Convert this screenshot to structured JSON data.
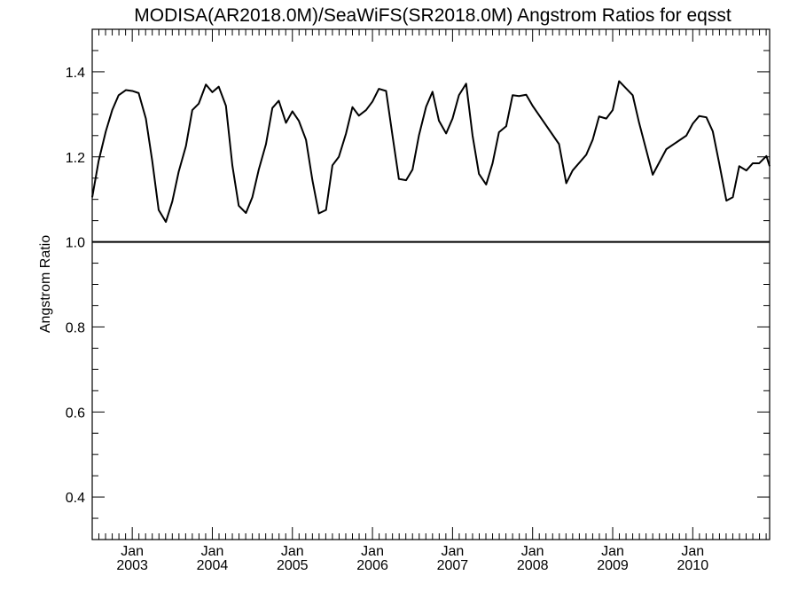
{
  "chart_data": {
    "type": "line",
    "title": "MODISA(AR2018.0M)/SeaWiFS(SR2018.0M)  Angstrom Ratios for eqsst",
    "xlabel": "",
    "ylabel": "Angstrom Ratio",
    "xlim": [
      2002.5,
      2010.96
    ],
    "ylim": [
      0.3,
      1.5
    ],
    "y_ticks": [
      "0.4",
      "0.6",
      "0.8",
      "1.0",
      "1.2",
      "1.4"
    ],
    "x_ticks": [
      {
        "month": "Jan",
        "year": "2003"
      },
      {
        "month": "Jan",
        "year": "2004"
      },
      {
        "month": "Jan",
        "year": "2005"
      },
      {
        "month": "Jan",
        "year": "2006"
      },
      {
        "month": "Jan",
        "year": "2007"
      },
      {
        "month": "Jan",
        "year": "2008"
      },
      {
        "month": "Jan",
        "year": "2009"
      },
      {
        "month": "Jan",
        "year": "2010"
      }
    ],
    "reference_line": 1.0,
    "series": [
      {
        "x": [
          2002.5,
          2002.58,
          2002.67,
          2002.75,
          2002.83,
          2002.92,
          2003.0,
          2003.08,
          2003.17,
          2003.25,
          2003.33,
          2003.42,
          2003.5,
          2003.58,
          2003.67,
          2003.75,
          2003.83,
          2003.92,
          2004.0,
          2004.08,
          2004.17,
          2004.25,
          2004.33,
          2004.42,
          2004.5,
          2004.58,
          2004.67,
          2004.75,
          2004.83,
          2004.92,
          2005.0,
          2005.08,
          2005.17,
          2005.25,
          2005.33,
          2005.42,
          2005.5,
          2005.58,
          2005.67,
          2005.75,
          2005.83,
          2005.92,
          2006.0,
          2006.08,
          2006.17,
          2006.25,
          2006.33,
          2006.42,
          2006.5,
          2006.58,
          2006.67,
          2006.75,
          2006.83,
          2006.92,
          2007.0,
          2007.08,
          2007.17,
          2007.25,
          2007.33,
          2007.42,
          2007.5,
          2007.58,
          2007.67,
          2007.75,
          2007.83,
          2007.92,
          2008.0,
          2008.33,
          2008.42,
          2008.5,
          2008.67,
          2008.75,
          2008.83,
          2008.92,
          2009.0,
          2009.08,
          2009.25,
          2009.33,
          2009.5,
          2009.67,
          2009.92,
          2010.0,
          2010.08,
          2010.17,
          2010.25,
          2010.33,
          2010.42,
          2010.5,
          2010.58,
          2010.67,
          2010.75,
          2010.83,
          2010.92,
          2010.96
        ],
        "y": [
          1.105,
          1.19,
          1.26,
          1.31,
          1.345,
          1.357,
          1.355,
          1.35,
          1.29,
          1.19,
          1.075,
          1.047,
          1.095,
          1.165,
          1.225,
          1.31,
          1.325,
          1.37,
          1.352,
          1.365,
          1.32,
          1.18,
          1.085,
          1.068,
          1.105,
          1.17,
          1.23,
          1.315,
          1.332,
          1.28,
          1.307,
          1.285,
          1.24,
          1.145,
          1.067,
          1.075,
          1.18,
          1.2,
          1.255,
          1.317,
          1.297,
          1.31,
          1.33,
          1.36,
          1.355,
          1.25,
          1.148,
          1.145,
          1.17,
          1.25,
          1.318,
          1.353,
          1.285,
          1.255,
          1.29,
          1.345,
          1.372,
          1.25,
          1.16,
          1.135,
          1.185,
          1.258,
          1.272,
          1.345,
          1.343,
          1.346,
          1.32,
          1.23,
          1.138,
          1.168,
          1.205,
          1.24,
          1.295,
          1.29,
          1.31,
          1.378,
          1.345,
          1.28,
          1.158,
          1.218,
          1.25,
          1.278,
          1.296,
          1.293,
          1.26,
          1.185,
          1.097,
          1.105,
          1.178,
          1.168,
          1.185,
          1.185,
          1.202,
          1.178
        ]
      }
    ]
  }
}
